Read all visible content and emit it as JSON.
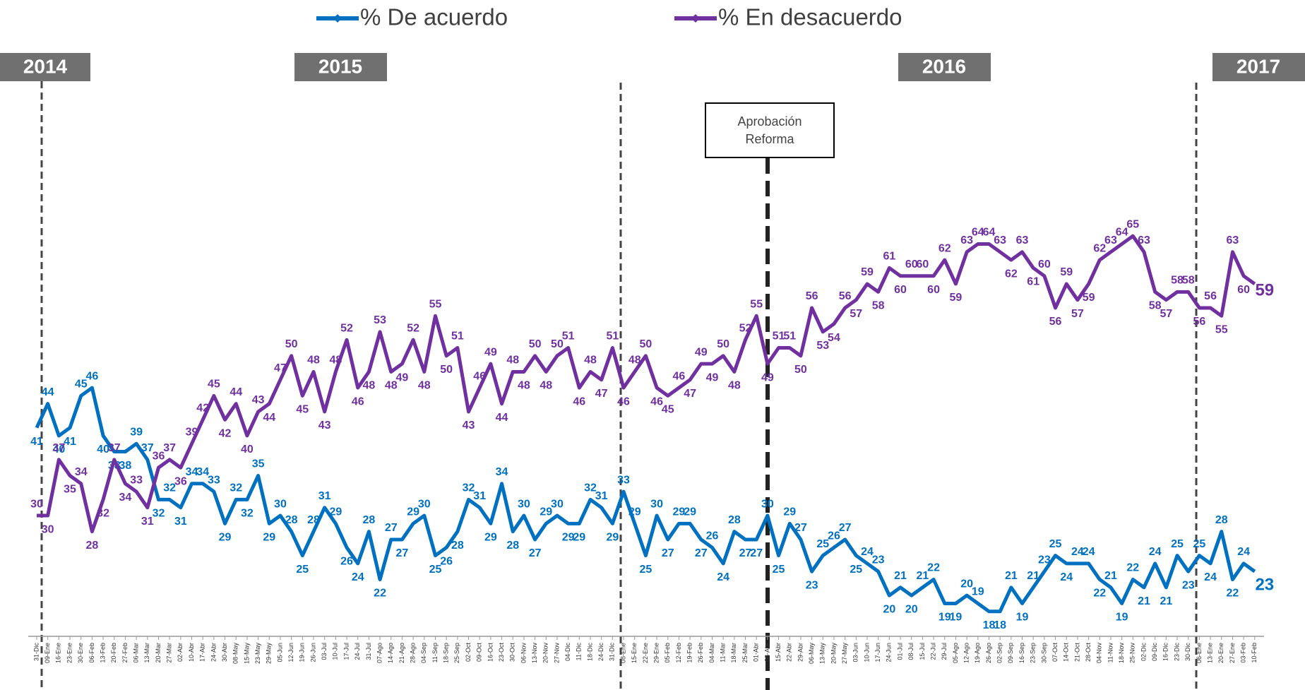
{
  "chart_data": {
    "type": "line",
    "year_labels": [
      "2014",
      "2015",
      "2016",
      "2017"
    ],
    "annotation": [
      "Aprobación",
      "Reforma"
    ],
    "categories": [
      "31-Dic",
      "09-Ene",
      "16-Ene",
      "23-Ene",
      "30-Ene",
      "06-Feb",
      "13-Feb",
      "20-Feb",
      "27-Feb",
      "06-Mar",
      "13-Mar",
      "20-Mar",
      "27-Mar",
      "02-Abr",
      "10-Abr",
      "17-Abr",
      "24-Abr",
      "30-Abr",
      "08-May",
      "15-May",
      "23-May",
      "29-May",
      "05-Jun",
      "12-Jun",
      "19-Jun",
      "26-Jun",
      "03-Jul",
      "10-Jul",
      "17-Jul",
      "24-Jul",
      "31-Jul",
      "07-Ago",
      "14-Ago",
      "21-Ago",
      "28-Ago",
      "04-Sep",
      "11-Sep",
      "18-Sep",
      "25-Sep",
      "02-Oct",
      "09-Oct",
      "16-Oct",
      "23-Oct",
      "30-Oct",
      "06-Nov",
      "13-Nov",
      "20-Nov",
      "27-Nov",
      "04-Dic",
      "11-Dic",
      "18-Dic",
      "24-Dic",
      "31-Dic",
      "08-Ene",
      "15-Ene",
      "22-Ene",
      "29-Ene",
      "05-Feb",
      "12-Feb",
      "19-Feb",
      "26-Feb",
      "04-Mar",
      "11-Mar",
      "18-Mar",
      "25-Mar",
      "01-Abr",
      "08-Abr",
      "15-Abr",
      "22-Abr",
      "29-Abr",
      "06-May",
      "13-May",
      "20-May",
      "27-May",
      "03-Jun",
      "10-Jun",
      "17-Jun",
      "24-Jun",
      "01-Jul",
      "08-Jul",
      "15-Jul",
      "22-Jul",
      "29-Jul",
      "05-Ago",
      "12-Ago",
      "19-Ago",
      "26-Ago",
      "02-Sep",
      "09-Sep",
      "16-Sep",
      "23-Sep",
      "30-Sep",
      "07-Oct",
      "14-Oct",
      "21-Oct",
      "28-Oct",
      "04-Nov",
      "11-Nov",
      "18-Nov",
      "25-Nov",
      "02-Dic",
      "09-Dic",
      "16-Dic",
      "23-Dic",
      "30-Dic",
      "06-Ene",
      "13-Ene",
      "20-Ene",
      "27-Ene",
      "03-Feb",
      "10-Feb"
    ],
    "series": [
      {
        "name": "% De acuerdo",
        "color": "#0070c0",
        "values": [
          41,
          44,
          40,
          41,
          45,
          46,
          40,
          38,
          38,
          39,
          37,
          32,
          32,
          31,
          34,
          34,
          33,
          29,
          32,
          32,
          35,
          29,
          30,
          28,
          25,
          28,
          31,
          29,
          26,
          24,
          28,
          22,
          27,
          27,
          29,
          30,
          25,
          26,
          28,
          32,
          31,
          29,
          34,
          28,
          30,
          27,
          29,
          30,
          29,
          29,
          32,
          31,
          29,
          33,
          29,
          25,
          30,
          27,
          29,
          29,
          27,
          26,
          24,
          28,
          27,
          27,
          30,
          25,
          29,
          27,
          23,
          25,
          26,
          27,
          25,
          24,
          23,
          20,
          21,
          20,
          21,
          22,
          19,
          19,
          20,
          19,
          18,
          18,
          21,
          19,
          21,
          23,
          25,
          24,
          24,
          24,
          22,
          21,
          19,
          22,
          21,
          24,
          21,
          25,
          23,
          25,
          24,
          28,
          22,
          24,
          23
        ]
      },
      {
        "name": "% En desacuerdo",
        "color": "#7030a0",
        "values": [
          30,
          30,
          37,
          35,
          34,
          28,
          32,
          37,
          34,
          33,
          31,
          36,
          37,
          36,
          39,
          42,
          45,
          42,
          44,
          40,
          43,
          44,
          47,
          50,
          45,
          48,
          43,
          48,
          52,
          46,
          48,
          53,
          48,
          49,
          52,
          48,
          55,
          50,
          51,
          43,
          46,
          49,
          44,
          48,
          48,
          50,
          48,
          50,
          51,
          46,
          48,
          47,
          51,
          46,
          48,
          50,
          46,
          45,
          46,
          47,
          49,
          49,
          50,
          48,
          52,
          55,
          49,
          51,
          51,
          50,
          56,
          53,
          54,
          56,
          57,
          59,
          58,
          61,
          60,
          60,
          60,
          60,
          62,
          59,
          63,
          64,
          64,
          63,
          62,
          63,
          61,
          60,
          56,
          59,
          57,
          59,
          62,
          63,
          64,
          65,
          63,
          58,
          57,
          58,
          58,
          56,
          56,
          55,
          63,
          60,
          59
        ]
      }
    ],
    "ylim": [
      15,
      80
    ]
  }
}
